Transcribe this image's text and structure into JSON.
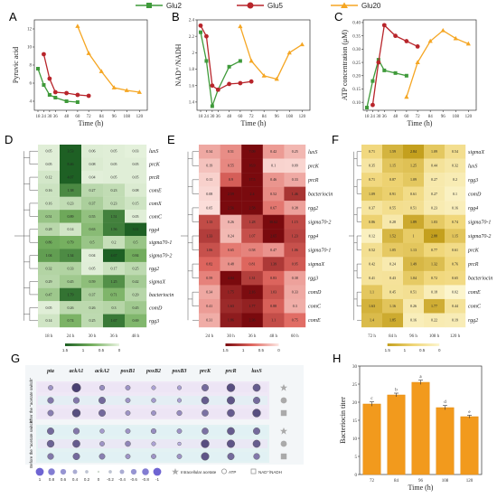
{
  "legend": {
    "glu2": "Glu2",
    "glu5": "Glu5",
    "glu20": "Glu20"
  },
  "colors": {
    "glu2": "#3f9a3a",
    "glu5": "#b8252b",
    "glu20": "#f5a623"
  },
  "panel_labels": {
    "a": "A",
    "b": "B",
    "c": "C",
    "d": "D",
    "e": "E",
    "f": "F",
    "g": "G",
    "h": "H"
  },
  "chart_data": [
    {
      "id": "A",
      "type": "line",
      "xlabel": "Time (h)",
      "ylabel": "Pyruvic acid",
      "ylim": [
        3,
        13
      ],
      "yticks": [
        4,
        6,
        8,
        10,
        12
      ],
      "xticks": [
        18,
        24,
        30,
        36,
        48,
        60,
        72,
        84,
        96,
        108,
        120
      ],
      "series": [
        {
          "name": "Glu2",
          "x": [
            18,
            24,
            30,
            36,
            48,
            60
          ],
          "y": [
            7.6,
            5.8,
            4.7,
            4.4,
            4.0,
            3.9
          ]
        },
        {
          "name": "Glu5",
          "x": [
            24,
            30,
            36,
            48,
            60,
            72
          ],
          "y": [
            9.2,
            6.5,
            5.0,
            4.9,
            4.7,
            4.6
          ]
        },
        {
          "name": "Glu20",
          "x": [
            60,
            72,
            84,
            96,
            108,
            120
          ],
          "y": [
            12.3,
            9.3,
            7.3,
            5.5,
            5.2,
            5.0
          ]
        }
      ]
    },
    {
      "id": "B",
      "type": "line",
      "xlabel": "Time (h)",
      "ylabel": "NAD⁺/NADH",
      "ylim": [
        1.3,
        2.4
      ],
      "yticks": [
        1.4,
        1.6,
        1.8,
        2.0,
        2.2,
        2.4
      ],
      "xticks": [
        18,
        24,
        30,
        36,
        48,
        60,
        72,
        84,
        96,
        108,
        120
      ],
      "series": [
        {
          "name": "Glu2",
          "x": [
            18,
            24,
            30,
            36,
            48,
            60
          ],
          "y": [
            2.25,
            1.9,
            1.35,
            1.55,
            1.83,
            1.9
          ]
        },
        {
          "name": "Glu5",
          "x": [
            18,
            24,
            30,
            36,
            48,
            60,
            72
          ],
          "y": [
            2.33,
            2.2,
            1.6,
            1.55,
            1.62,
            1.63,
            1.65
          ]
        },
        {
          "name": "Glu20",
          "x": [
            60,
            72,
            84,
            96,
            108,
            120
          ],
          "y": [
            2.32,
            1.9,
            1.72,
            1.68,
            2.0,
            2.1
          ]
        }
      ]
    },
    {
      "id": "C",
      "type": "line",
      "xlabel": "Time (h)",
      "ylabel": "ATP concentration (μM)",
      "ylim": [
        0.07,
        0.41
      ],
      "yticks": [
        0.1,
        0.15,
        0.2,
        0.25,
        0.3,
        0.35,
        0.4
      ],
      "xticks": [
        18,
        24,
        30,
        36,
        48,
        60,
        72,
        84,
        96,
        108,
        120
      ],
      "series": [
        {
          "name": "Glu2",
          "x": [
            18,
            24,
            30,
            36,
            48,
            60
          ],
          "y": [
            0.08,
            0.18,
            0.26,
            0.22,
            0.21,
            0.2
          ]
        },
        {
          "name": "Glu5",
          "x": [
            24,
            30,
            36,
            48,
            60,
            72
          ],
          "y": [
            0.09,
            0.25,
            0.39,
            0.35,
            0.33,
            0.31
          ]
        },
        {
          "name": "Glu20",
          "x": [
            60,
            72,
            84,
            96,
            108,
            120
          ],
          "y": [
            0.12,
            0.25,
            0.33,
            0.37,
            0.34,
            0.32
          ]
        }
      ]
    },
    {
      "id": "D",
      "type": "heatmap",
      "columns": [
        "18 h",
        "24 h",
        "30 h",
        "36 h",
        "48 h"
      ],
      "rows": [
        "luxS",
        "prcK",
        "prcR",
        "comE",
        "comX",
        "comC",
        "rgg4",
        "sigma70-1",
        "sigma70-2",
        "rgg2",
        "sigmaX",
        "bacteriocin",
        "comD",
        "rgg3"
      ],
      "values": [
        [
          0.05,
          3.53,
          0.06,
          0.05,
          0.03
        ],
        [
          0.05,
          8.46,
          0.08,
          0.05,
          0.05
        ],
        [
          0.12,
          4.07,
          0.04,
          0.05,
          0.05
        ],
        [
          0.16,
          1.38,
          0.27,
          0.23,
          0.08
        ],
        [
          0.16,
          0.23,
          0.37,
          0.23,
          0.15
        ],
        [
          0.51,
          0.89,
          0.55,
          1.51,
          0.05
        ],
        [
          0.28,
          0.14,
          0.63,
          1.56,
          3.11
        ],
        [
          0.86,
          0.79,
          0.5,
          0.2,
          0.5
        ],
        [
          1.04,
          1.34,
          0.04,
          4.67,
          0.84
        ],
        [
          0.32,
          0.33,
          0.05,
          0.17,
          0.25
        ],
        [
          0.29,
          0.45,
          0.59,
          1.25,
          0.42
        ],
        [
          0.47,
          1.79,
          0.37,
          0.71,
          0.29
        ],
        [
          0.05,
          0.26,
          0.26,
          0.3,
          0.45
        ],
        [
          0.14,
          0.74,
          0.25,
          1.67,
          0.69
        ]
      ],
      "legend_ticks": [
        "1.5",
        "1",
        "0.5",
        "0"
      ]
    },
    {
      "id": "E",
      "type": "heatmap",
      "columns": [
        "24 h",
        "30 h",
        "36 h",
        "48 h",
        "60 h"
      ],
      "rows": [
        "luxS",
        "prcK",
        "prcR",
        "bacteriocin",
        "rgg2",
        "sigma70-2",
        "rgg4",
        "sigma70-1",
        "sigmaX",
        "rgg3",
        "comD",
        "comC",
        "comE"
      ],
      "values": [
        [
          0.34,
          0.51,
          7.09,
          0.42,
          0.25
        ],
        [
          0.19,
          0.55,
          16.9,
          0.1,
          0.09
        ],
        [
          0.11,
          0.9,
          17.5,
          0.46,
          0.33
        ],
        [
          0.08,
          2.59,
          2.4,
          0.52,
          1.46
        ],
        [
          0.05,
          2.56,
          2.58,
          0.67,
          0.38
        ],
        [
          1.13,
          0.26,
          1.28,
          30.62,
          1.15
        ],
        [
          1.33,
          0.24,
          1.07,
          2.65,
          1.23
        ],
        [
          1.06,
          0.65,
          0.58,
          0.47,
          1.06
        ],
        [
          0.82,
          0.48,
          0.81,
          1.39,
          0.95
        ],
        [
          0.59,
          4.04,
          1.31,
          0.83,
          0.38
        ],
        [
          0.34,
          1.75,
          2.16,
          1.03,
          0.33
        ],
        [
          0.41,
          1.63,
          1.77,
          0.88,
          0.3
        ],
        [
          0.31,
          1.86,
          2.36,
          1.1,
          0.75
        ]
      ],
      "legend_ticks": [
        "1.5",
        "1",
        "0.5",
        "0"
      ]
    },
    {
      "id": "F",
      "type": "heatmap",
      "columns": [
        "72 h",
        "84 h",
        "96 h",
        "108 h",
        "120 h"
      ],
      "rows": [
        "sigmaX",
        "luxS",
        "rgg3",
        "comD",
        "rgg4",
        "sigma70-1",
        "sigma70-2",
        "prcK",
        "prcR",
        "bacteriocin",
        "comE",
        "comC",
        "rgg2"
      ],
      "values": [
        [
          0.71,
          1.59,
          2.84,
          1.09,
          0.54
        ],
        [
          0.35,
          1.15,
          1.25,
          0.44,
          0.32
        ],
        [
          0.71,
          0.87,
          1.09,
          0.27,
          0.2
        ],
        [
          1.09,
          0.91,
          0.61,
          0.27,
          0.1
        ],
        [
          0.37,
          0.55,
          0.51,
          0.23,
          0.16
        ],
        [
          0.86,
          0.28,
          1.89,
          1.03,
          0.74
        ],
        [
          0.12,
          1.52,
          1.0,
          2.88,
          1.15
        ],
        [
          0.52,
          1.05,
          1.13,
          0.77,
          0.61
        ],
        [
          0.42,
          0.24,
          1.49,
          1.32,
          0.76
        ],
        [
          0.41,
          0.43,
          1.04,
          0.72,
          0.65
        ],
        [
          1.1,
          0.45,
          0.51,
          0.18,
          0.02
        ],
        [
          1.63,
          1.16,
          0.26,
          1.77,
          0.44
        ],
        [
          1.4,
          1.85,
          0.16,
          0.22,
          0.19
        ]
      ],
      "legend_ticks": [
        "1.5",
        "1",
        "0.5",
        "0"
      ]
    },
    {
      "id": "G",
      "type": "bubble",
      "genes": [
        "pta",
        "ackA1",
        "ackA2",
        "poxB1",
        "poxB2",
        "poxB3",
        "prcK",
        "prcR",
        "luxS"
      ],
      "group_labels": [
        "After the \"acetate switch\"",
        "Before the \"acetate switch\""
      ],
      "row_markers": [
        "intracellular-acetate",
        "atp",
        "nad-nadh"
      ],
      "values": [
        [
          [
            0.3,
            0.9,
            0.35,
            0.3,
            0.2,
            0.2,
            0.6,
            0.8,
            0.7
          ],
          [
            0.5,
            0.5,
            0.6,
            0.3,
            0.25,
            0.2,
            0.7,
            0.75,
            0.6
          ],
          [
            0.45,
            0.8,
            0.6,
            0.3,
            0.3,
            0.35,
            0.55,
            0.7,
            0.8
          ]
        ],
        [
          [
            0.6,
            0.5,
            0.25,
            0.3,
            0.35,
            0.3,
            0.55,
            0.7,
            0.6
          ],
          [
            0.65,
            0.7,
            0.3,
            0.4,
            0.2,
            0.1,
            0.8,
            0.75,
            0.7
          ],
          [
            0.5,
            0.6,
            0.45,
            0.3,
            0.3,
            0.3,
            0.75,
            0.6,
            0.5
          ]
        ]
      ],
      "scale_ticks": [
        "1",
        "0.8",
        "0.6",
        "0.4",
        "0.2",
        "0",
        "-0.2",
        "-0.4",
        "-0.6",
        "-0.8",
        "-1"
      ],
      "marker_legend": {
        "acetate": "Intracellular acetate",
        "atp": "ATP",
        "nad": "NAD⁺/NADH"
      }
    },
    {
      "id": "H",
      "type": "bar",
      "categories": [
        "72",
        "84",
        "96",
        "108",
        "120"
      ],
      "values": [
        19.5,
        22,
        25.5,
        18.5,
        16
      ],
      "errors": [
        0.6,
        0.5,
        0.6,
        0.6,
        0.4
      ],
      "letters": [
        "c",
        "b",
        "a",
        "d",
        "e"
      ],
      "xlabel": "Time (h)",
      "ylabel": "Bacteriocin titer",
      "ylim": [
        0,
        30
      ],
      "yticks": [
        0,
        5,
        10,
        15,
        20,
        25,
        30
      ]
    }
  ]
}
